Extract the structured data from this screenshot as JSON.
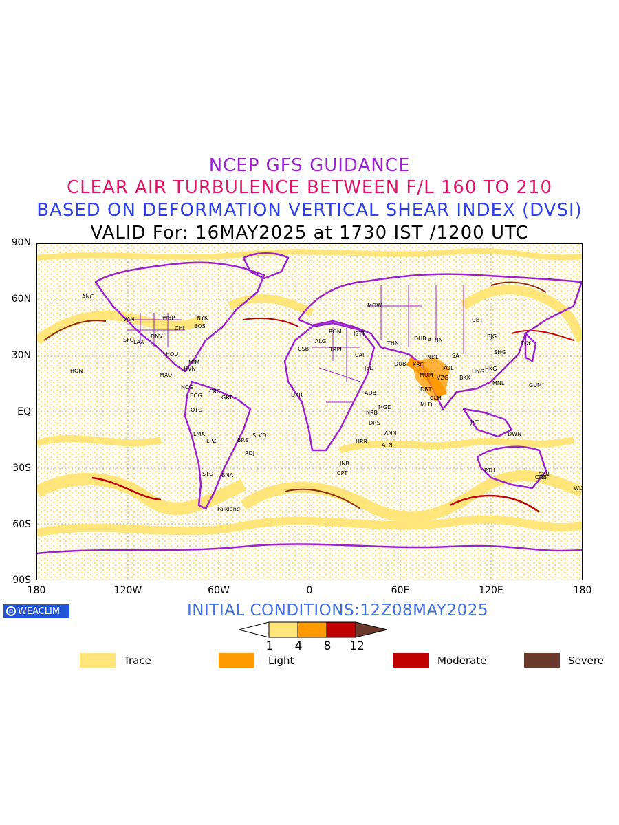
{
  "header": {
    "line1": "NCEP GFS GUIDANCE",
    "line2": "CLEAR AIR TURBULENCE BETWEEN F/L 160 TO 210",
    "line3": "BASED ON DEFORMATION VERTICAL SHEAR INDEX (DVSI)",
    "line4": "VALID For: 16MAY2025 at 1730 IST /1200 UTC"
  },
  "axes": {
    "y_ticks": [
      "90N",
      "60N",
      "30N",
      "EQ",
      "30S",
      "60S",
      "90S"
    ],
    "x_ticks": [
      "180",
      "120W",
      "60W",
      "0",
      "60E",
      "120E",
      "180"
    ]
  },
  "footer": {
    "logo_text": "WEACLIM",
    "initial_conditions": "INITIAL CONDITIONS:12Z08MAY2025"
  },
  "colorbar": {
    "labels": [
      "1",
      "4",
      "8",
      "12"
    ],
    "colors": [
      "#ffe57a",
      "#ff9a00",
      "#c00000",
      "#6b3a2c"
    ]
  },
  "legend": [
    {
      "label": "Trace",
      "color": "#ffe57a"
    },
    {
      "label": "Light",
      "color": "#ff9a00"
    },
    {
      "label": "Moderate",
      "color": "#c00000"
    },
    {
      "label": "Severe",
      "color": "#6b3a2c"
    }
  ],
  "map": {
    "coastline_color": "#9b20d0",
    "stations": [
      "ANC",
      "VAN",
      "SFO",
      "LAX",
      "DNV",
      "WBP",
      "CHI",
      "NYK",
      "BOS",
      "MIM",
      "HVN",
      "HOU",
      "HON",
      "MXO",
      "NCG",
      "BOG",
      "GRT",
      "CRC",
      "QTO",
      "LMA",
      "LPZ",
      "BRS",
      "SLVD",
      "RDJ",
      "STO",
      "BNA",
      "Falkland",
      "CSB",
      "ALG",
      "TRPL",
      "ROM",
      "ISTT",
      "MOW",
      "CAI",
      "JED",
      "DUB",
      "KRC",
      "THN",
      "NDL",
      "DHB",
      "ATHN",
      "KOL",
      "SA",
      "MUM",
      "VZG",
      "DBT",
      "MLD",
      "CLM",
      "BKK",
      "HNG",
      "HKG",
      "SHG",
      "TKY",
      "UBT",
      "BJG",
      "MNL",
      "GUM",
      "JKT",
      "DWN",
      "PTH",
      "SYN",
      "CNB",
      "WLT",
      "DKR",
      "ADB",
      "NRB",
      "DRS",
      "MGD",
      "ANN",
      "HRR",
      "ATN",
      "JNB",
      "CPT"
    ]
  }
}
